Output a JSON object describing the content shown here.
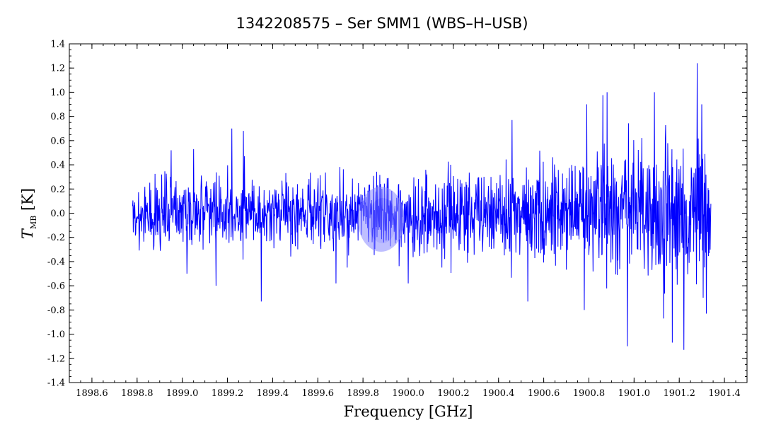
{
  "chart_data": {
    "type": "line",
    "title": "1342208575 – Ser SMM1 (WBS–H–USB)",
    "xlabel": "Frequency [GHz]",
    "ylabel_main": "T",
    "ylabel_sub": "MB",
    "ylabel_unit": " [K]",
    "xlim": [
      1898.5,
      1901.5
    ],
    "ylim": [
      -1.4,
      1.4
    ],
    "x_ticks": [
      1898.6,
      1898.8,
      1899.0,
      1899.2,
      1899.4,
      1899.6,
      1899.8,
      1900.0,
      1900.2,
      1900.4,
      1900.6,
      1900.8,
      1901.0,
      1901.2,
      1901.4
    ],
    "x_tick_labels": [
      "1898.6",
      "1898.8",
      "1899.0",
      "1899.2",
      "1899.4",
      "1899.6",
      "1899.8",
      "1900.0",
      "1900.2",
      "1900.4",
      "1900.6",
      "1900.8",
      "1901.0",
      "1901.2",
      "1901.4"
    ],
    "y_ticks": [
      -1.4,
      -1.2,
      -1.0,
      -0.8,
      -0.6,
      -0.4,
      -0.2,
      0.0,
      0.2,
      0.4,
      0.6,
      0.8,
      1.0,
      1.2,
      1.4
    ],
    "y_tick_labels": [
      "-1.4",
      "-1.2",
      "-1.0",
      "-0.8",
      "-0.6",
      "-0.4",
      "-0.2",
      "0.0",
      "0.2",
      "0.4",
      "0.6",
      "0.8",
      "1.0",
      "1.2",
      "1.4"
    ],
    "grid": false,
    "series": [
      {
        "color": "#0000ff",
        "x_start": 1898.78,
        "x_end": 1901.34,
        "noise_sigma": [
          0.17,
          0.17,
          0.18,
          0.2,
          0.28,
          0.33,
          0.36
        ],
        "noise_sigma_x": [
          1898.78,
          1899.5,
          1900.0,
          1900.4,
          1900.8,
          1901.1,
          1901.34
        ],
        "extremes": [
          {
            "x": 1898.95,
            "y": 0.52
          },
          {
            "x": 1899.05,
            "y": 0.53
          },
          {
            "x": 1899.22,
            "y": 0.7
          },
          {
            "x": 1899.27,
            "y": 0.68
          },
          {
            "x": 1899.15,
            "y": -0.6
          },
          {
            "x": 1899.35,
            "y": -0.73
          },
          {
            "x": 1899.68,
            "y": -0.58
          },
          {
            "x": 1900.0,
            "y": -0.58
          },
          {
            "x": 1900.46,
            "y": 0.77
          },
          {
            "x": 1900.53,
            "y": -0.73
          },
          {
            "x": 1900.79,
            "y": 0.9
          },
          {
            "x": 1900.88,
            "y": 1.0
          },
          {
            "x": 1900.78,
            "y": -0.8
          },
          {
            "x": 1900.97,
            "y": -1.1
          },
          {
            "x": 1901.09,
            "y": 1.0
          },
          {
            "x": 1901.13,
            "y": -0.87
          },
          {
            "x": 1901.17,
            "y": -1.07
          },
          {
            "x": 1901.22,
            "y": -1.13
          },
          {
            "x": 1901.28,
            "y": 1.24
          },
          {
            "x": 1901.3,
            "y": 0.9
          },
          {
            "x": 1901.32,
            "y": -0.83
          }
        ]
      }
    ],
    "watermark_color": "#8c8cff"
  }
}
